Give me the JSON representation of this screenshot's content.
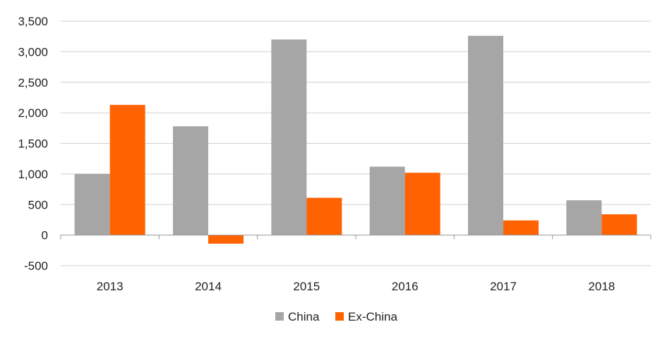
{
  "chart_data": {
    "type": "bar",
    "categories": [
      "2013",
      "2014",
      "2015",
      "2016",
      "2017",
      "2018"
    ],
    "series": [
      {
        "name": "China",
        "color": "#a6a6a6",
        "values": [
          1000,
          1780,
          3200,
          1120,
          3260,
          570
        ]
      },
      {
        "name": "Ex-China",
        "color": "#ff6200",
        "values": [
          2130,
          -140,
          610,
          1020,
          240,
          340
        ]
      }
    ],
    "yticks": [
      "-500",
      "0",
      "500",
      "1,000",
      "1,500",
      "2,000",
      "2,500",
      "3,000",
      "3,500"
    ],
    "ylim": [
      -500,
      3500
    ],
    "grid": true,
    "legend": "bottom-center"
  }
}
